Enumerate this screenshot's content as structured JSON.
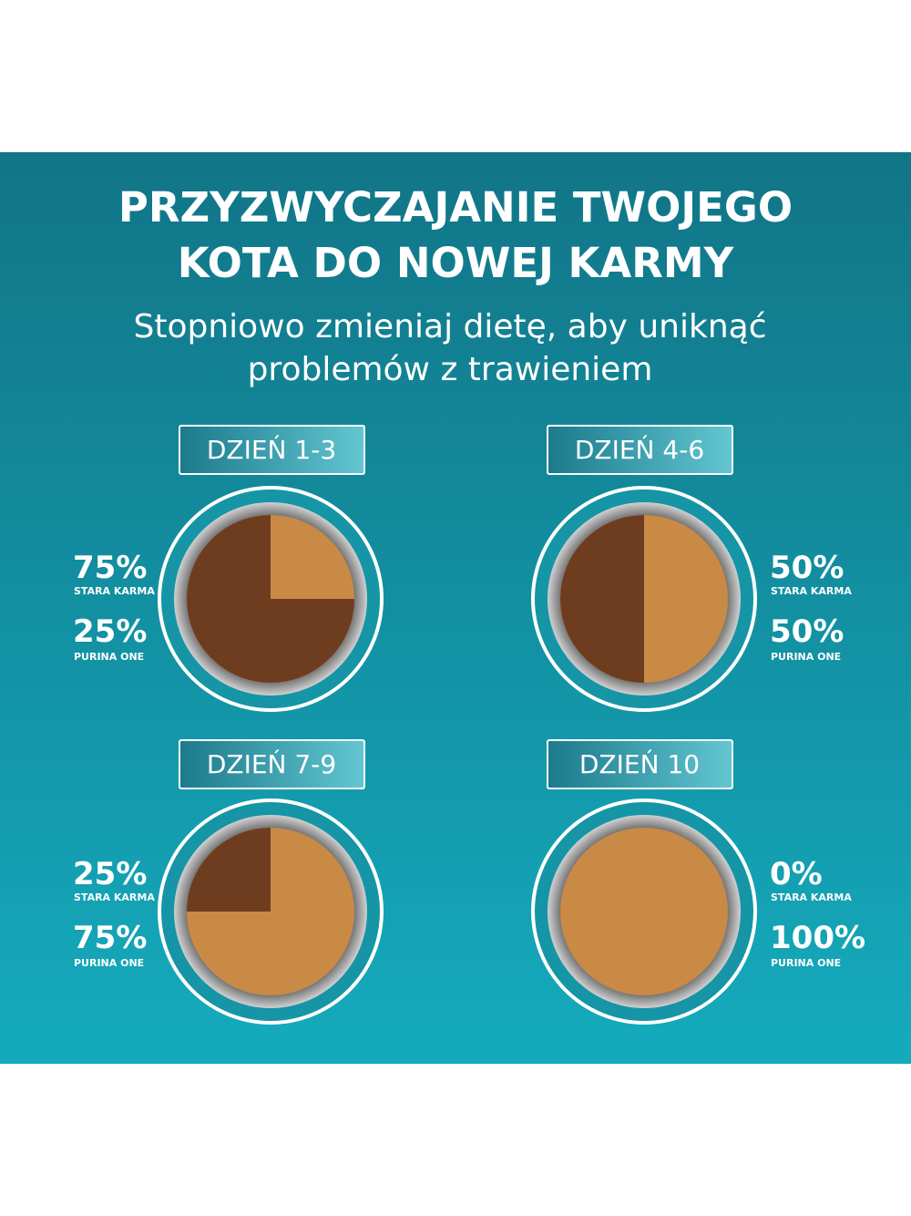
{
  "header": {
    "title_lines": [
      "PRZYZWYCZAJANIE TWOJEGO",
      "KOTA DO NOWEJ KARMY"
    ],
    "subtitle_lines": [
      "Stopniowo zmieniaj dietę, aby uniknąć",
      "problemów z trawieniem"
    ]
  },
  "panels": [
    {
      "day": "DZIEŃ 1-3",
      "old_percent": "75%",
      "old_label": "STARA KARMA",
      "new_percent": "25%",
      "new_label": "PURINA ONE"
    },
    {
      "day": "DZIEŃ 4-6",
      "old_percent": "50%",
      "old_label": "STARA KARMA",
      "new_percent": "50%",
      "new_label": "PURINA ONE"
    },
    {
      "day": "DZIEŃ 7-9",
      "old_percent": "25%",
      "old_label": "STARA KARMA",
      "new_percent": "75%",
      "new_label": "PURINA ONE"
    },
    {
      "day": "DZIEŃ 10",
      "old_percent": "0%",
      "old_label": "STARA KARMA",
      "new_percent": "100%",
      "new_label": "PURINA ONE"
    }
  ]
}
